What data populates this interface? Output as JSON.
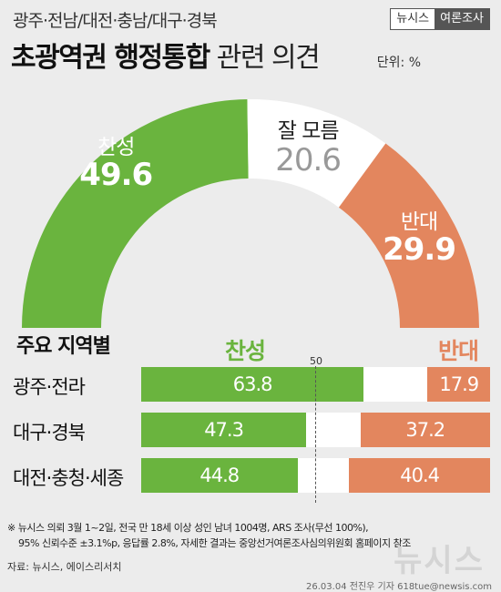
{
  "header": {
    "subtitle": "광주·전남/대전·충남/대구·경북",
    "title_bold": "초광역권 행정통합",
    "title_light": " 관련 의견",
    "unit": "단위: %",
    "brand_left": "뉴시스",
    "brand_right": "여론조사"
  },
  "colors": {
    "agree": "#6ab43e",
    "unsure": "#ffffff",
    "disagree": "#e3865e",
    "background": "#ececec"
  },
  "chart_data": [
    {
      "type": "pie",
      "title": "초광역권 행정통합 관련 의견",
      "unit": "%",
      "slices": [
        {
          "label": "찬성",
          "value": 49.6,
          "color": "#6ab43e"
        },
        {
          "label": "잘 모름",
          "value": 20.6,
          "color": "#ffffff"
        },
        {
          "label": "반대",
          "value": 29.9,
          "color": "#e3865e"
        }
      ]
    },
    {
      "type": "bar",
      "title": "주요 지역별",
      "categories": [
        "광주·전라",
        "대구·경북",
        "대전·충청·세종"
      ],
      "series": [
        {
          "name": "찬성",
          "values": [
            63.8,
            47.3,
            44.8
          ],
          "color": "#6ab43e"
        },
        {
          "name": "반대",
          "values": [
            17.9,
            37.2,
            40.4
          ],
          "color": "#e3865e"
        }
      ],
      "xlim": [
        0,
        100
      ],
      "reference_line": {
        "label": "50",
        "value": 50
      }
    }
  ],
  "notes": {
    "line1": "※ 뉴시스 의뢰 3월 1~2일, 전국 만 18세 이상 성인 남녀 1004명, ARS 조사(무선 100%),",
    "line2": "95% 신뢰수준 ±3.1%p, 응답률 2.8%, 자세한 결과는 중앙선거여론조사심의위원회 홈페이지 참조",
    "source": "자료: 뉴시스, 에이스리서치",
    "credit": "26.03.04 전진우 기자 618tue@newsis.com",
    "watermark": "뉴시스"
  }
}
